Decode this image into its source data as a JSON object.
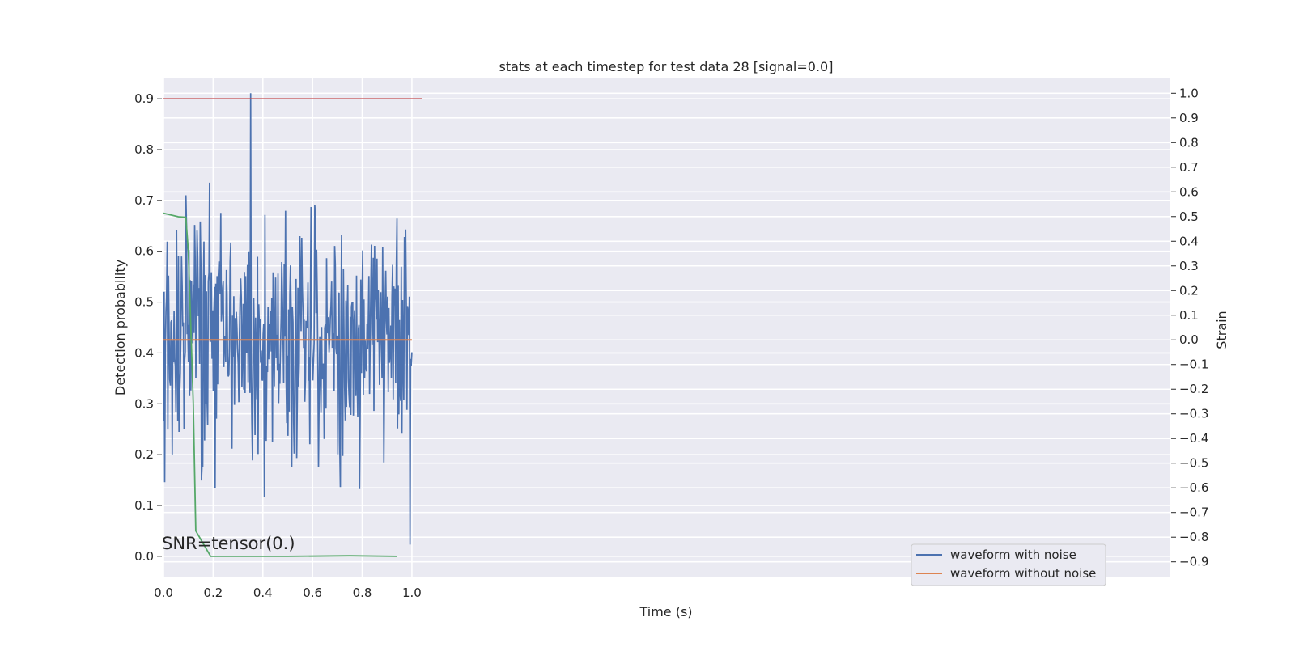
{
  "chart_data": {
    "type": "line",
    "title": "stats at each timestep for test data 28 [signal=0.0]",
    "xlabel": "Time (s)",
    "ylabel_left": "Detection probability",
    "ylabel_right": "Strain",
    "xlim": [
      0.0,
      4.05
    ],
    "ylim_left": [
      -0.04,
      0.94
    ],
    "ylim_right": [
      -0.96,
      1.06
    ],
    "x_ticks": [
      "0.0",
      "0.2",
      "0.4",
      "0.6",
      "0.8",
      "1.0"
    ],
    "y_ticks_left": [
      "0.0",
      "0.1",
      "0.2",
      "0.3",
      "0.4",
      "0.5",
      "0.6",
      "0.7",
      "0.8",
      "0.9"
    ],
    "y_ticks_right": [
      "1.0",
      "0.9",
      "0.8",
      "0.7",
      "0.6",
      "0.5",
      "0.4",
      "0.3",
      "0.2",
      "0.1",
      "0.0",
      "−0.1",
      "−0.2",
      "−0.3",
      "−0.4",
      "−0.5",
      "−0.6",
      "−0.7",
      "−0.8",
      "−0.9"
    ],
    "annotation": "SNR=tensor(0.)",
    "grid": true,
    "legend": {
      "placement": "lower-right",
      "entries": [
        {
          "name": "waveform with noise",
          "color": "#4c72b0"
        },
        {
          "name": "waveform without noise",
          "color": "#dd8452"
        }
      ]
    },
    "series": [
      {
        "name": "waveform with noise",
        "axis": "right",
        "color": "#4c72b0",
        "x_range": [
          0.0,
          1.0
        ],
        "samples": 400,
        "min": -0.83,
        "max": 1.0,
        "center": 0.0
      },
      {
        "name": "waveform without noise",
        "axis": "right",
        "color": "#dd8452",
        "x": [
          0.0,
          1.0
        ],
        "y": [
          0.0,
          0.0
        ]
      },
      {
        "axis": "left",
        "color": "#55a868",
        "x": [
          0.0,
          0.06,
          0.09,
          0.1,
          0.11,
          0.12,
          0.13,
          0.19,
          0.3,
          0.5,
          0.75,
          0.94
        ],
        "y": [
          0.675,
          0.668,
          0.667,
          0.6,
          0.45,
          0.3,
          0.05,
          0.0,
          0.0,
          0.0,
          0.001,
          0.0
        ]
      },
      {
        "axis": "left",
        "color": "#c44e52",
        "x": [
          0.0,
          1.04
        ],
        "y": [
          0.9,
          0.9
        ]
      }
    ]
  }
}
